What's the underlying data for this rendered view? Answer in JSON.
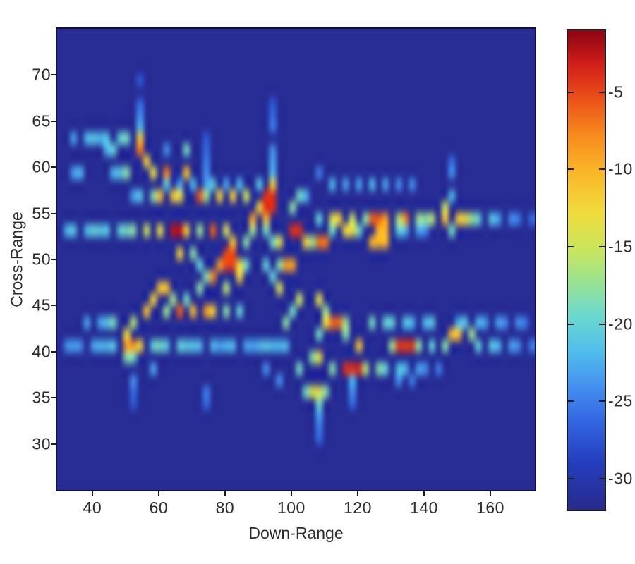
{
  "figure": {
    "background": "#ffffff",
    "frame_color": "#10103e",
    "tick_color": "#1a1a1a",
    "text_color": "#2b2b2b"
  },
  "chart_data": {
    "type": "heatmap",
    "title": "",
    "xlabel": "Down-Range",
    "ylabel": "Cross-Range",
    "x_ticks": [
      40,
      60,
      80,
      100,
      120,
      140,
      160
    ],
    "y_ticks": [
      70,
      65,
      60,
      55,
      50,
      45,
      40,
      35,
      30
    ],
    "x_range": [
      29.4,
      173.4
    ],
    "y_range": [
      25.0,
      75.0
    ],
    "grid_cols": 72,
    "grid_rows": 40,
    "cell_units": {
      "dx": 2.0,
      "dy": 1.25
    },
    "background_db": -31.5,
    "colorbar": {
      "ticks": [
        -5,
        -10,
        -15,
        -20,
        -25,
        -30
      ],
      "value_range": [
        -32,
        -1
      ],
      "colormap": "jet"
    },
    "scatterers_format": "[down_range, cross_range, dB, optional width_units, optional height_units]",
    "scatterers": [
      [
        54.3,
        62.9,
        -11.5
      ],
      [
        54.6,
        61.7,
        -7
      ],
      [
        56.4,
        60.8,
        -12
      ],
      [
        62.3,
        59.8,
        -7.5,
        3
      ],
      [
        68.7,
        61.3,
        -19,
        3
      ],
      [
        68.7,
        59.7,
        -11,
        3
      ],
      [
        58.1,
        58.8,
        -13
      ],
      [
        51.3,
        60.0,
        -18
      ],
      [
        48.5,
        59.9,
        -21
      ],
      [
        45.5,
        59.8,
        -22
      ],
      [
        44.0,
        61.5,
        -22
      ],
      [
        47.0,
        61.4,
        -20
      ],
      [
        34.0,
        59.7,
        -23
      ],
      [
        36.5,
        59.7,
        -22
      ],
      [
        35.0,
        62.9,
        -23
      ],
      [
        37.5,
        62.9,
        -22
      ],
      [
        40.0,
        62.9,
        -21
      ],
      [
        42.5,
        62.9,
        -22
      ],
      [
        45.0,
        62.9,
        -21
      ],
      [
        47.5,
        62.9,
        -20
      ],
      [
        50.0,
        62.8,
        -19
      ],
      [
        54.5,
        64.5,
        -22
      ],
      [
        54.5,
        66.0,
        -24
      ],
      [
        54.4,
        67.4,
        -26
      ],
      [
        54.4,
        68.8,
        -27
      ],
      [
        62.3,
        61.5,
        -24
      ],
      [
        51.5,
        56.5,
        -23
      ],
      [
        54.5,
        56.5,
        -21
      ],
      [
        57.5,
        56.6,
        -18
      ],
      [
        60.8,
        56.6,
        -11
      ],
      [
        64.0,
        56.6,
        -11.5
      ],
      [
        67.0,
        56.7,
        -13
      ],
      [
        71.5,
        56.7,
        -6
      ],
      [
        75.0,
        56.5,
        -17
      ],
      [
        79.0,
        56.6,
        -12
      ],
      [
        82.5,
        56.6,
        -12
      ],
      [
        85.5,
        56.4,
        -15
      ],
      [
        94.3,
        56.2,
        -4,
        4,
        2
      ],
      [
        89.5,
        55.3,
        -12
      ],
      [
        93.8,
        57.8,
        -12
      ],
      [
        87.7,
        54.5,
        -9
      ],
      [
        92.0,
        54.6,
        -10
      ],
      [
        99.5,
        55.9,
        -18
      ],
      [
        101.5,
        56.4,
        -19
      ],
      [
        104.5,
        56.4,
        -22
      ],
      [
        61.5,
        57.8,
        -21
      ],
      [
        66.0,
        57.8,
        -23
      ],
      [
        70.0,
        57.8,
        -22
      ],
      [
        74.0,
        57.8,
        -23
      ],
      [
        77.0,
        57.8,
        -21
      ],
      [
        81.0,
        57.8,
        -23
      ],
      [
        85.0,
        57.8,
        -22
      ],
      [
        90.0,
        57.9,
        -21
      ],
      [
        95.0,
        59.3,
        -22
      ],
      [
        95.0,
        60.8,
        -23
      ],
      [
        95.0,
        62.3,
        -24
      ],
      [
        95.0,
        63.8,
        -25
      ],
      [
        95.0,
        65.3,
        -26
      ],
      [
        95.0,
        66.8,
        -27
      ],
      [
        74.0,
        58.8,
        -24
      ],
      [
        74.0,
        60.3,
        -25
      ],
      [
        74.0,
        61.8,
        -26
      ],
      [
        74.0,
        63.3,
        -27
      ],
      [
        108.0,
        54.9,
        -20
      ],
      [
        111.5,
        54.8,
        -14
      ],
      [
        114.8,
        54.7,
        -12
      ],
      [
        118.0,
        54.9,
        -15
      ],
      [
        121.5,
        54.8,
        -18
      ],
      [
        125.5,
        54.7,
        -6,
        4
      ],
      [
        129.0,
        54.7,
        -9
      ],
      [
        131.5,
        54.8,
        -16
      ],
      [
        134.5,
        54.6,
        -8,
        3
      ],
      [
        137.8,
        54.7,
        -17
      ],
      [
        140.5,
        54.8,
        -18
      ],
      [
        143.2,
        55.0,
        -16
      ],
      [
        146.2,
        55.8,
        -15
      ],
      [
        146.0,
        54.6,
        -11
      ],
      [
        149.5,
        54.3,
        -11.5
      ],
      [
        151.8,
        53.8,
        -13
      ],
      [
        148.0,
        53.6,
        -19
      ],
      [
        153.8,
        54.6,
        -17
      ],
      [
        157.0,
        54.8,
        -20
      ],
      [
        160.0,
        54.8,
        -21
      ],
      [
        163.0,
        54.8,
        -23
      ],
      [
        166.0,
        54.8,
        -24
      ],
      [
        169.0,
        54.8,
        -25
      ],
      [
        171.5,
        54.8,
        -26
      ],
      [
        113.0,
        57.6,
        -22
      ],
      [
        117.0,
        57.6,
        -23
      ],
      [
        121.0,
        57.7,
        -23
      ],
      [
        125.0,
        57.7,
        -22
      ],
      [
        129.0,
        57.7,
        -23
      ],
      [
        133.0,
        57.7,
        -24
      ],
      [
        137.0,
        57.7,
        -24
      ],
      [
        147.5,
        57.3,
        -22
      ],
      [
        147.5,
        58.8,
        -24
      ],
      [
        147.5,
        60.3,
        -26
      ],
      [
        107.5,
        59.7,
        -25
      ],
      [
        32.5,
        52.8,
        -22
      ],
      [
        35.0,
        52.8,
        -21
      ],
      [
        37.5,
        52.8,
        -22
      ],
      [
        40.0,
        52.8,
        -20
      ],
      [
        42.5,
        52.8,
        -21
      ],
      [
        45.0,
        52.8,
        -21
      ],
      [
        47.5,
        52.8,
        -20
      ],
      [
        50.0,
        52.8,
        -19
      ],
      [
        52.8,
        52.8,
        -18
      ],
      [
        56.5,
        52.8,
        -15
      ],
      [
        60.5,
        52.8,
        -13
      ],
      [
        64.7,
        52.6,
        -2.5,
        4
      ],
      [
        68.8,
        52.7,
        -12
      ],
      [
        72.0,
        52.7,
        -17
      ],
      [
        76.4,
        52.8,
        -6,
        3
      ],
      [
        79.8,
        52.8,
        -14
      ],
      [
        82.5,
        52.4,
        -11,
        3
      ],
      [
        86.0,
        52.5,
        -18
      ],
      [
        88.5,
        52.6,
        -17
      ],
      [
        91.5,
        52.6,
        -19
      ],
      [
        95.0,
        52.5,
        -19
      ],
      [
        101.5,
        52.6,
        -4,
        4
      ],
      [
        106.0,
        52.4,
        -17
      ],
      [
        109.0,
        51.9,
        -7,
        3
      ],
      [
        96.5,
        51.6,
        -14
      ],
      [
        104.5,
        51.7,
        -12
      ],
      [
        111.8,
        52.9,
        -19
      ],
      [
        117.0,
        52.9,
        -13,
        3
      ],
      [
        120.8,
        52.8,
        -19
      ],
      [
        126.6,
        52.5,
        -10,
        4,
        2
      ],
      [
        124.0,
        51.7,
        -10
      ],
      [
        129.0,
        51.8,
        -16
      ],
      [
        131.5,
        52.6,
        -20
      ],
      [
        134.5,
        52.7,
        -22
      ],
      [
        137.5,
        52.7,
        -23
      ],
      [
        140.5,
        52.7,
        -24
      ],
      [
        67.0,
        50.4,
        -12
      ],
      [
        70.2,
        50.2,
        -18
      ],
      [
        73.0,
        50.0,
        -20
      ],
      [
        77.6,
        49.8,
        -8.5
      ],
      [
        80.9,
        49.7,
        -5,
        3,
        2
      ],
      [
        84.0,
        49.9,
        -13
      ],
      [
        87.0,
        49.7,
        -19
      ],
      [
        92.0,
        49.4,
        -20
      ],
      [
        95.5,
        49.6,
        -18
      ],
      [
        99.0,
        49.1,
        -9,
        3
      ],
      [
        83.4,
        48.3,
        -12
      ],
      [
        77.0,
        47.7,
        -8
      ],
      [
        80.5,
        47.4,
        -16
      ],
      [
        74.5,
        48.6,
        -18
      ],
      [
        97.2,
        46.6,
        -14
      ],
      [
        94.5,
        47.6,
        -20
      ],
      [
        61.0,
        46.3,
        -11,
        3
      ],
      [
        64.3,
        46.0,
        -17
      ],
      [
        58.5,
        45.2,
        -12
      ],
      [
        56.4,
        44.3,
        -11
      ],
      [
        53.0,
        43.4,
        -16
      ],
      [
        49.4,
        42.4,
        -13
      ],
      [
        46.5,
        42.6,
        -19
      ],
      [
        44.0,
        43.3,
        -21
      ],
      [
        41.5,
        43.0,
        -23
      ],
      [
        38.5,
        43.0,
        -23
      ],
      [
        66.4,
        44.8,
        -6
      ],
      [
        63.3,
        44.6,
        -17
      ],
      [
        68.5,
        45.8,
        -19
      ],
      [
        73.0,
        46.6,
        -18
      ],
      [
        70.0,
        44.5,
        -10.5
      ],
      [
        73.8,
        44.4,
        -9
      ],
      [
        77.3,
        44.3,
        -12
      ],
      [
        80.5,
        44.2,
        -18
      ],
      [
        83.5,
        44.4,
        -20
      ],
      [
        98.0,
        43.7,
        -18
      ],
      [
        101.0,
        43.9,
        -19
      ],
      [
        51.7,
        40.3,
        -8.5,
        4
      ],
      [
        55.0,
        40.2,
        -12
      ],
      [
        50.3,
        39.1,
        -18
      ],
      [
        53.0,
        38.8,
        -19
      ],
      [
        57.5,
        38.7,
        -23
      ],
      [
        51.8,
        37.4,
        -24
      ],
      [
        51.8,
        35.9,
        -26
      ],
      [
        51.8,
        34.4,
        -27
      ],
      [
        32.0,
        40.4,
        -24
      ],
      [
        34.5,
        40.4,
        -23
      ],
      [
        37.0,
        40.4,
        -24
      ],
      [
        39.5,
        40.4,
        -23
      ],
      [
        42.0,
        40.4,
        -22
      ],
      [
        44.5,
        40.4,
        -22
      ],
      [
        47.0,
        40.4,
        -21
      ],
      [
        58.0,
        40.3,
        -20
      ],
      [
        60.5,
        40.8,
        -19
      ],
      [
        63.0,
        40.4,
        -21
      ],
      [
        65.5,
        40.4,
        -20
      ],
      [
        68.0,
        40.4,
        -21
      ],
      [
        70.5,
        40.4,
        -21
      ],
      [
        73.0,
        40.4,
        -22
      ],
      [
        75.5,
        40.4,
        -22
      ],
      [
        78.0,
        40.4,
        -23
      ],
      [
        80.5,
        40.4,
        -22
      ],
      [
        83.0,
        40.5,
        -22
      ],
      [
        85.5,
        40.5,
        -23
      ],
      [
        88.0,
        40.5,
        -23
      ],
      [
        90.5,
        40.6,
        -22
      ],
      [
        93.0,
        40.7,
        -21
      ],
      [
        95.5,
        40.7,
        -22
      ],
      [
        98.0,
        40.6,
        -22
      ],
      [
        107.4,
        45.5,
        -13.5
      ],
      [
        110.3,
        44.9,
        -17
      ],
      [
        103.2,
        45.3,
        -15
      ],
      [
        113.4,
        43.5,
        -6.5,
        3
      ],
      [
        116.6,
        43.4,
        -17
      ],
      [
        110.8,
        42.6,
        -13
      ],
      [
        108.0,
        42.3,
        -19
      ],
      [
        120.6,
        41.2,
        -11,
        3
      ],
      [
        117.3,
        41.5,
        -18
      ],
      [
        124.0,
        42.9,
        -19
      ],
      [
        127.5,
        42.9,
        -20
      ],
      [
        131.0,
        42.8,
        -20
      ],
      [
        134.0,
        42.8,
        -21
      ],
      [
        137.0,
        42.8,
        -22
      ],
      [
        140.0,
        42.9,
        -22
      ],
      [
        143.0,
        42.9,
        -21
      ],
      [
        149.5,
        42.8,
        -22
      ],
      [
        152.5,
        42.8,
        -21
      ],
      [
        155.5,
        42.8,
        -22
      ],
      [
        158.5,
        42.8,
        -23
      ],
      [
        161.5,
        42.8,
        -23
      ],
      [
        164.5,
        42.8,
        -24
      ],
      [
        167.5,
        42.8,
        -24
      ],
      [
        170.5,
        42.8,
        -25
      ],
      [
        134.5,
        40.5,
        -4.5,
        5
      ],
      [
        130.5,
        40.6,
        -17
      ],
      [
        138.5,
        40.6,
        -18
      ],
      [
        141.5,
        40.9,
        -20
      ],
      [
        149.8,
        41.3,
        -11,
        4
      ],
      [
        145.5,
        41.2,
        -18
      ],
      [
        153.6,
        41.3,
        -17
      ],
      [
        157.0,
        40.9,
        -20
      ],
      [
        160.0,
        40.9,
        -21
      ],
      [
        163.0,
        40.9,
        -22
      ],
      [
        166.0,
        40.9,
        -23
      ],
      [
        169.0,
        40.9,
        -24
      ],
      [
        171.8,
        40.9,
        -25
      ],
      [
        109.0,
        39.0,
        -13.5
      ],
      [
        105.7,
        38.9,
        -18
      ],
      [
        101.7,
        38.3,
        -19
      ],
      [
        118.8,
        38.4,
        -4,
        6
      ],
      [
        123.0,
        38.4,
        -16
      ],
      [
        112.5,
        38.6,
        -18
      ],
      [
        126.0,
        38.4,
        -18
      ],
      [
        128.8,
        38.4,
        -20
      ],
      [
        131.8,
        38.5,
        -21
      ],
      [
        134.8,
        38.5,
        -22
      ],
      [
        137.8,
        38.5,
        -23
      ],
      [
        140.8,
        38.5,
        -24
      ],
      [
        143.8,
        38.5,
        -25
      ],
      [
        107.4,
        35.9,
        -14,
        3
      ],
      [
        104.5,
        36.2,
        -19
      ],
      [
        110.5,
        35.7,
        -18
      ],
      [
        108.3,
        34.6,
        -19
      ],
      [
        108.2,
        33.1,
        -23
      ],
      [
        108.1,
        31.6,
        -25
      ],
      [
        108.0,
        30.1,
        -26
      ],
      [
        119.0,
        36.9,
        -22
      ],
      [
        119.0,
        35.4,
        -24
      ],
      [
        119.0,
        33.9,
        -26
      ],
      [
        133.0,
        37.3,
        -24
      ],
      [
        136.0,
        37.2,
        -25
      ],
      [
        95.0,
        40.8,
        -22
      ],
      [
        92.5,
        38.6,
        -24
      ],
      [
        97.0,
        37.0,
        -24
      ],
      [
        74.0,
        36.1,
        -25
      ],
      [
        74.0,
        34.6,
        -26
      ]
    ]
  }
}
